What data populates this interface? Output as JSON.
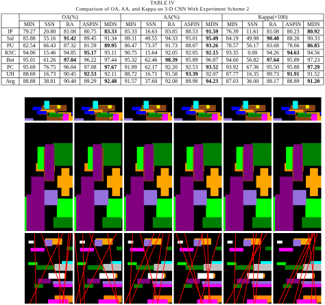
{
  "table": {
    "label": "TABLE IV",
    "caption": "Comparison of OA, AA, and Kappa on 3-D CNN With Experiment Scheme 2",
    "groups": [
      "OA(%)",
      "AA(%)",
      "Kappa(×100)"
    ],
    "methods": [
      "MIN",
      "SSN",
      "RA",
      "ASPIN",
      "MDN"
    ],
    "rows": [
      {
        "label": "IP",
        "cells": [
          "79.27",
          "20.80",
          "81.08",
          "80.75",
          "83.33",
          "85.33",
          "16.63",
          "83.85",
          "88.53",
          "91.59",
          "76.39",
          "11.61",
          "81.08",
          "80.23",
          "80.92"
        ],
        "bold": [
          4,
          9,
          14
        ]
      },
      {
        "label": "Sal",
        "cells": [
          "85.88",
          "55.16",
          "91.42",
          "89.45",
          "91.34",
          "89.11",
          "49.55",
          "94.33",
          "95.01",
          "95.49",
          "84.19",
          "49.98",
          "90.48",
          "88.26",
          "90.33"
        ],
        "bold": [
          2,
          9,
          12
        ]
      },
      {
        "label": "PU",
        "cells": [
          "82.54",
          "66.43",
          "87.32",
          "81.59",
          "89.95",
          "86.47",
          "73.37",
          "91.73",
          "88.07",
          "93.26",
          "78.57",
          "56.17",
          "83.68",
          "78.66",
          "86.85"
        ],
        "bold": [
          4,
          9,
          14
        ]
      },
      {
        "label": "KSC",
        "cells": [
          "94.06",
          "15.46",
          "94.85",
          "95.17",
          "95.11",
          "90.75",
          "15.64",
          "92.05",
          "92.05",
          "92.15",
          "93.35",
          "0.00",
          "94.26",
          "94.63",
          "94.56"
        ],
        "bold": [
          3,
          9,
          13
        ]
      },
      {
        "label": "Bot",
        "cells": [
          "95.01",
          "61.26",
          "97.84",
          "96.22",
          "97.44",
          "95.32",
          "62.46",
          "98.39",
          "95.89",
          "96.87",
          "94.60",
          "56.82",
          "97.64",
          "95.89",
          "97.23"
        ],
        "bold": [
          2,
          7,
          12
        ]
      },
      {
        "label": "PC",
        "cells": [
          "95.69",
          "76.75",
          "96.84",
          "97.08",
          "97.67",
          "91.89",
          "62.17",
          "92.20",
          "92.53",
          "93.52",
          "93.92",
          "67.36",
          "95.50",
          "95.88",
          "97.29"
        ],
        "bold": [
          4,
          9,
          14
        ]
      },
      {
        "label": "UH",
        "cells": [
          "88.69",
          "16.73",
          "90.45",
          "92.53",
          "92.11",
          "88.72",
          "16.71",
          "91.58",
          "93.39",
          "92.07",
          "87.77",
          "16.35",
          "89.73",
          "91.91",
          "91.52"
        ],
        "bold": [
          3,
          8,
          13
        ]
      },
      {
        "label": "Avg",
        "cells": [
          "88.88",
          "38.81",
          "90.48",
          "89.29",
          "92.48",
          "91.57",
          "37.60",
          "92.08",
          "89.98",
          "94.23",
          "87.03",
          "36.00",
          "88.17",
          "88.89",
          "91.20"
        ],
        "bold": [
          4,
          9,
          14
        ]
      }
    ]
  }
}
